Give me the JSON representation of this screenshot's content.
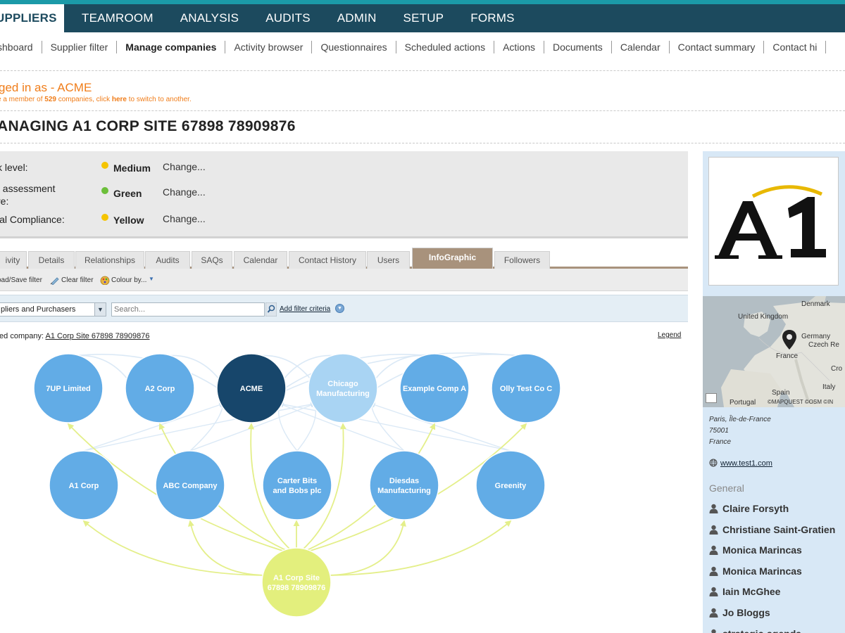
{
  "top_nav": [
    "UPPLIERS",
    "TEAMROOM",
    "ANALYSIS",
    "AUDITS",
    "ADMIN",
    "SETUP",
    "FORMS"
  ],
  "sub_nav": [
    "shboard",
    "Supplier filter",
    "Manage companies",
    "Activity browser",
    "Questionnaires",
    "Scheduled actions",
    "Actions",
    "Documents",
    "Calendar",
    "Contact summary",
    "Contact hi"
  ],
  "login": {
    "logged_in": "ged in as - ACME",
    "member_prefix": "e a member of ",
    "member_count": "529",
    "member_mid": " companies, click ",
    "member_here": "here",
    "member_suffix": " to switch to another."
  },
  "page_title": "ANAGING A1 CORP SITE 67898 78909876",
  "status_rows": [
    {
      "label": "k level:",
      "value": "Medium",
      "change": "Change...",
      "color": "#f5c400"
    },
    {
      "label": "f assessment\nre:",
      "value": "Green",
      "change": "Change...",
      "color": "#6cbf3a"
    },
    {
      "label": "ial Compliance:",
      "value": "Yellow",
      "change": "Change...",
      "color": "#f5c400"
    }
  ],
  "tabs": [
    "ivity",
    "Details",
    "Relationships",
    "Audits",
    "SAQs",
    "Calendar",
    "Contact History",
    "Users",
    "InfoGraphic",
    "Followers"
  ],
  "active_tab": "InfoGraphic",
  "toolbar": {
    "load_save": "oad/Save filter",
    "clear": "Clear filter",
    "colour": "Colour by..."
  },
  "filter": {
    "select_value": "pliers and Purchasers",
    "search_placeholder": "Search...",
    "add_criteria": "Add filter criteria"
  },
  "selected_company": {
    "prefix": "ted company: ",
    "link": "A1 Corp Site 67898 78909876"
  },
  "legend": "Legend",
  "graph_nodes_top": [
    {
      "label": "7UP Limited",
      "color": "#62ace6"
    },
    {
      "label": "A2 Corp",
      "color": "#62ace6"
    },
    {
      "label": "ACME",
      "color": "#17466b"
    },
    {
      "label": "Chicago\nManufacturing",
      "color": "#a9d4f3"
    },
    {
      "label": "Example Comp A",
      "color": "#62ace6"
    },
    {
      "label": "Olly Test Co C",
      "color": "#62ace6"
    }
  ],
  "graph_nodes_mid": [
    {
      "label": "A1 Corp",
      "color": "#62ace6"
    },
    {
      "label": "ABC Company",
      "color": "#62ace6"
    },
    {
      "label": "Carter Bits\nand Bobs plc",
      "color": "#62ace6"
    },
    {
      "label": "Diesdas\nManufacturing",
      "color": "#62ace6"
    },
    {
      "label": "Greenity",
      "color": "#62ace6"
    }
  ],
  "graph_center": {
    "label": "A1 Corp Site\n67898 78909876",
    "color": "#e3ef7d"
  },
  "sidebar": {
    "logo_text": "A1",
    "map_labels": [
      "Denmark",
      "United Kingdom",
      "Germany",
      "Czech Re",
      "France",
      "Cro",
      "Spain",
      "Italy",
      "Portugal",
      "©MAPQUEST ©OSM ©IN"
    ],
    "address": [
      "Paris, Île-de-France",
      "75001",
      "France"
    ],
    "website": "www.test1.com",
    "section": "General",
    "contacts": [
      "Claire Forsyth",
      "Christiane Saint-Gratien",
      "Monica Marincas",
      "Monica Marincas",
      "Iain McGhee",
      "Jo Bloggs",
      "strategic-agenda"
    ]
  }
}
